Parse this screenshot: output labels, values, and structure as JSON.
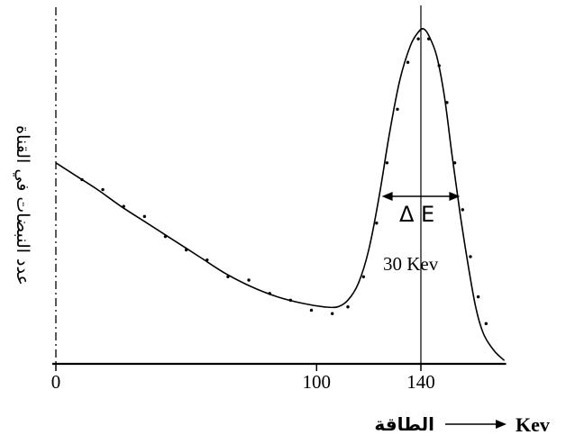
{
  "chart_data": {
    "type": "line",
    "title": "",
    "ylabel": "عدد النبضات في القناة",
    "xlabel": "الطاقة",
    "xunit": "Kev",
    "xticks": [
      {
        "value": 0,
        "label": "0"
      },
      {
        "value": 100,
        "label": "100"
      },
      {
        "value": 140,
        "label": "140"
      }
    ],
    "xlim": [
      0,
      172
    ],
    "ylim": [
      0,
      100
    ],
    "peak_energy": 140,
    "fwhm": {
      "label_symbol": "Δ E",
      "label_value": "30 Kev",
      "from": 125,
      "to": 155
    },
    "series": [
      {
        "x": [
          0,
          8,
          16,
          25,
          35,
          45,
          55,
          65,
          75,
          85,
          95,
          103,
          108,
          112,
          116,
          120,
          124,
          128,
          132,
          136,
          139,
          141,
          143,
          146,
          149,
          152,
          155,
          158,
          161,
          164,
          168,
          172
        ],
        "y": [
          60,
          56,
          52,
          47,
          42,
          37,
          32,
          27,
          23,
          20,
          18,
          17,
          17,
          19,
          24,
          34,
          50,
          69,
          85,
          95,
          99,
          100,
          98,
          92,
          80,
          62,
          45,
          30,
          17,
          9,
          4,
          1
        ]
      }
    ],
    "scatter_points": [
      {
        "x": 10,
        "y": 55
      },
      {
        "x": 18,
        "y": 52
      },
      {
        "x": 26,
        "y": 47
      },
      {
        "x": 34,
        "y": 44
      },
      {
        "x": 42,
        "y": 38
      },
      {
        "x": 50,
        "y": 34
      },
      {
        "x": 58,
        "y": 31
      },
      {
        "x": 66,
        "y": 26
      },
      {
        "x": 74,
        "y": 25
      },
      {
        "x": 82,
        "y": 21
      },
      {
        "x": 90,
        "y": 19
      },
      {
        "x": 98,
        "y": 16
      },
      {
        "x": 106,
        "y": 15
      },
      {
        "x": 112,
        "y": 17
      },
      {
        "x": 118,
        "y": 26
      },
      {
        "x": 123,
        "y": 42
      },
      {
        "x": 127,
        "y": 60
      },
      {
        "x": 131,
        "y": 76
      },
      {
        "x": 135,
        "y": 90
      },
      {
        "x": 139,
        "y": 97
      },
      {
        "x": 143,
        "y": 97
      },
      {
        "x": 147,
        "y": 89
      },
      {
        "x": 150,
        "y": 78
      },
      {
        "x": 153,
        "y": 60
      },
      {
        "x": 156,
        "y": 46
      },
      {
        "x": 159,
        "y": 32
      },
      {
        "x": 162,
        "y": 20
      },
      {
        "x": 165,
        "y": 12
      }
    ]
  }
}
